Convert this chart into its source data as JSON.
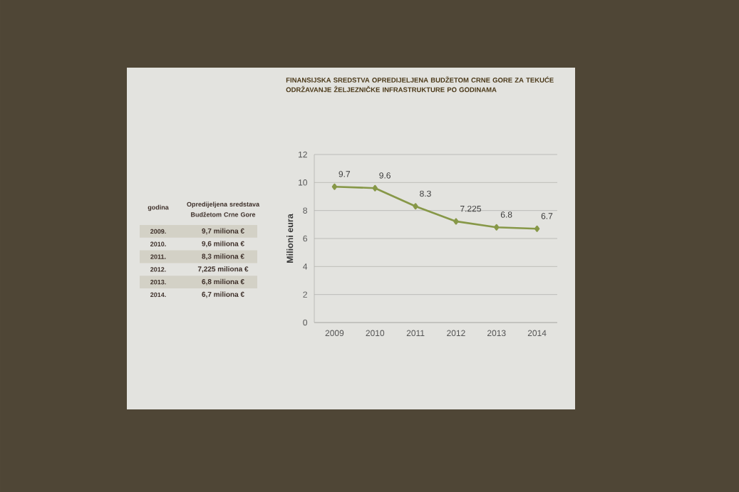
{
  "chart_data": {
    "type": "line",
    "title": "FINANSIJSKA SREDSTVA OPREDIJELJENA BUDŽETOM CRNE GORE ZA TEKUĆE ODRŽAVANJE ŽELJEZNIČKE INFRASTRUKTURE PO GODINAMA",
    "ylabel": "Milioni eura",
    "categories": [
      "2009",
      "2010",
      "2011",
      "2012",
      "2013",
      "2014"
    ],
    "values": [
      9.7,
      9.6,
      8.3,
      7.225,
      6.8,
      6.7
    ],
    "color": "#879848",
    "ylim": [
      0,
      12
    ],
    "yticks": [
      0,
      2,
      4,
      6,
      8,
      10,
      12
    ],
    "grid": "y",
    "marker": "diamond",
    "data_labels": true,
    "annotations": [
      "godina",
      "Opredijeljena sredstava Budžetom Crne Gore",
      "2009.",
      "9,7 miliona €",
      "2010.",
      "9,6 miliona €",
      "2011.",
      "8,3 miliona €",
      "2012.",
      "7,225 miliona €",
      "2013.",
      "6,8 miliona €",
      "2014.",
      "6,7 miliona €"
    ]
  }
}
